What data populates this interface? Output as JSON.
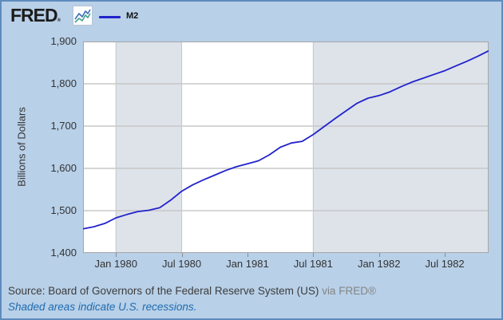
{
  "header": {
    "logo_text": "FRED",
    "logo_registered": "®",
    "legend": {
      "series_label": "M2",
      "line_color": "#2222cc"
    }
  },
  "footer": {
    "source": "Source: Board of Governors of the Federal Reserve System (US)",
    "via": "via FRED®",
    "note": "Shaded areas indicate U.S. recessions."
  },
  "chart_data": {
    "type": "line",
    "title": "",
    "xlabel": "",
    "ylabel": "Billions of Dollars",
    "ylim": [
      1400,
      1900
    ],
    "grid": true,
    "legend_position": "top-left",
    "x": [
      "1979-10",
      "1979-11",
      "1979-12",
      "1980-01",
      "1980-02",
      "1980-03",
      "1980-04",
      "1980-05",
      "1980-06",
      "1980-07",
      "1980-08",
      "1980-09",
      "1980-10",
      "1980-11",
      "1980-12",
      "1981-01",
      "1981-02",
      "1981-03",
      "1981-04",
      "1981-05",
      "1981-06",
      "1981-07",
      "1981-08",
      "1981-09",
      "1981-10",
      "1981-11",
      "1981-12",
      "1982-01",
      "1982-02",
      "1982-03",
      "1982-04",
      "1982-05",
      "1982-06",
      "1982-07",
      "1982-08",
      "1982-09",
      "1982-10",
      "1982-11"
    ],
    "series": [
      {
        "name": "M2",
        "color": "#2222cc",
        "values": [
          1457,
          1462,
          1470,
          1483,
          1491,
          1498,
          1501,
          1507,
          1525,
          1546,
          1561,
          1573,
          1584,
          1595,
          1604,
          1611,
          1618,
          1632,
          1650,
          1660,
          1664,
          1680,
          1699,
          1718,
          1736,
          1754,
          1766,
          1772,
          1781,
          1793,
          1804,
          1813,
          1822,
          1831,
          1842,
          1853,
          1865,
          1878
        ]
      }
    ],
    "x_tick_labels": [
      "Jan 1980",
      "Jul 1980",
      "Jan 1981",
      "Jul 1981",
      "Jan 1982",
      "Jul 1982"
    ],
    "x_tick_indices": [
      3,
      9,
      15,
      21,
      27,
      33
    ],
    "y_ticks": [
      1400,
      1500,
      1600,
      1700,
      1800,
      1900
    ],
    "y_tick_labels": [
      "1,400",
      "1,500",
      "1,600",
      "1,700",
      "1,800",
      "1,900"
    ],
    "recession_bands": [
      {
        "from_index": 3,
        "to_index": 9
      },
      {
        "from_index": 21,
        "to_index": 37
      }
    ],
    "colors": {
      "background": "#b8d0e8",
      "plot_background": "#ffffff",
      "plot_border": "#a6a6a6",
      "grid": "#c8c8c8",
      "band": "#dde3e9",
      "band_edge": "#c2c6ca",
      "line": "#2222cc"
    }
  }
}
